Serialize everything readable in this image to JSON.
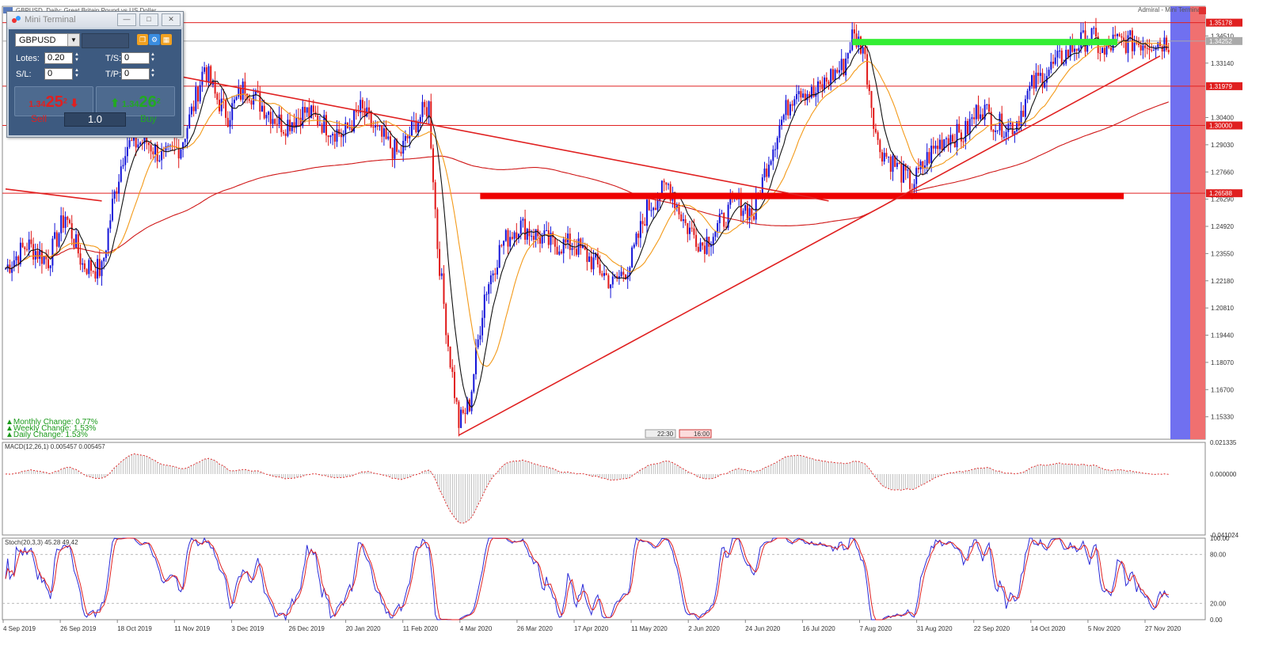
{
  "header": {
    "title": "GBPUSD, Daily:  Great Britain Pound vs US Dollar",
    "brand": "Admiral - Mini Terminal"
  },
  "mini_terminal": {
    "title": "Mini Terminal",
    "symbol": "GBPUSD",
    "lots_label": "Lotes:",
    "lots_value": "0.20",
    "ts_label": "T/S:",
    "ts_value": "0",
    "sl_label": "S/L:",
    "sl_value": "0",
    "tp_label": "T/P:",
    "tp_value": "0",
    "sell": {
      "prefix": "1.34",
      "big": "25",
      "sup": "2",
      "label": "Sell"
    },
    "buy": {
      "prefix": "1.34",
      "big": "26",
      "sup": "2",
      "label": "Buy"
    },
    "lot_multiplier": "1.0"
  },
  "changes": [
    "▲Monthly Change: 0.77%",
    "▲Weekly Change: 1.53%",
    "▲Daily Change: 1.53%"
  ],
  "time_labels": [
    "22:30",
    "16:00"
  ],
  "chart_data": [
    {
      "type": "candlestick",
      "ylim": [
        1.142,
        1.36
      ],
      "price_ticks": [
        "1.34510",
        "1.33140",
        "1.30400",
        "1.29030",
        "1.27660",
        "1.26290",
        "1.24920",
        "1.23550",
        "1.22180",
        "1.20810",
        "1.19440",
        "1.18070",
        "1.16700",
        "1.15330"
      ],
      "highlighted_levels": [
        {
          "label": "1.35178",
          "value": 1.35178,
          "color": "#e02020"
        },
        {
          "label": "1.34252",
          "value": 1.34252,
          "color": "#aaaaaa"
        },
        {
          "label": "1.31979",
          "value": 1.31979,
          "color": "#e02020"
        },
        {
          "label": "1.30000",
          "value": 1.3,
          "color": "#e02020"
        },
        {
          "label": "1.26588",
          "value": 1.26588,
          "color": "#e02020"
        }
      ],
      "date_labels": [
        "4 Sep 2019",
        "26 Sep 2019",
        "18 Oct 2019",
        "11 Nov 2019",
        "3 Dec 2019",
        "26 Dec 2019",
        "20 Jan 2020",
        "11 Feb 2020",
        "4 Mar 2020",
        "26 Mar 2020",
        "17 Apr 2020",
        "11 May 2020",
        "2 Jun 2020",
        "24 Jun 2020",
        "16 Jul 2020",
        "7 Aug 2020",
        "31 Aug 2020",
        "22 Sep 2020",
        "14 Oct 2020",
        "5 Nov 2020",
        "27 Nov 2020"
      ],
      "close_path": [
        [
          0,
          1.228
        ],
        [
          10,
          1.24
        ],
        [
          20,
          1.232
        ],
        [
          28,
          1.255
        ],
        [
          36,
          1.23
        ],
        [
          45,
          1.227
        ],
        [
          50,
          1.26
        ],
        [
          56,
          1.29
        ],
        [
          66,
          1.292
        ],
        [
          74,
          1.283
        ],
        [
          82,
          1.29
        ],
        [
          88,
          1.31
        ],
        [
          93,
          1.33
        ],
        [
          98,
          1.315
        ],
        [
          104,
          1.305
        ],
        [
          112,
          1.32
        ],
        [
          120,
          1.31
        ],
        [
          130,
          1.3
        ],
        [
          140,
          1.307
        ],
        [
          150,
          1.3
        ],
        [
          158,
          1.295
        ],
        [
          166,
          1.308
        ],
        [
          174,
          1.296
        ],
        [
          184,
          1.285
        ],
        [
          192,
          1.302
        ],
        [
          198,
          1.31
        ],
        [
          202,
          1.24
        ],
        [
          207,
          1.19
        ],
        [
          212,
          1.15
        ],
        [
          217,
          1.16
        ],
        [
          224,
          1.215
        ],
        [
          232,
          1.24
        ],
        [
          240,
          1.25
        ],
        [
          248,
          1.245
        ],
        [
          256,
          1.24
        ],
        [
          266,
          1.24
        ],
        [
          276,
          1.23
        ],
        [
          284,
          1.22
        ],
        [
          292,
          1.23
        ],
        [
          300,
          1.258
        ],
        [
          310,
          1.27
        ],
        [
          318,
          1.25
        ],
        [
          326,
          1.24
        ],
        [
          334,
          1.25
        ],
        [
          342,
          1.262
        ],
        [
          350,
          1.255
        ],
        [
          356,
          1.28
        ],
        [
          362,
          1.3
        ],
        [
          370,
          1.32
        ],
        [
          378,
          1.315
        ],
        [
          386,
          1.325
        ],
        [
          392,
          1.33
        ],
        [
          396,
          1.345
        ],
        [
          401,
          1.34
        ],
        [
          408,
          1.29
        ],
        [
          416,
          1.28
        ],
        [
          424,
          1.27
        ],
        [
          432,
          1.285
        ],
        [
          440,
          1.295
        ],
        [
          448,
          1.295
        ],
        [
          456,
          1.31
        ],
        [
          464,
          1.3
        ],
        [
          472,
          1.3
        ],
        [
          480,
          1.32
        ],
        [
          490,
          1.33
        ],
        [
          500,
          1.34
        ],
        [
          508,
          1.345
        ],
        [
          514,
          1.335
        ],
        [
          518,
          1.342
        ]
      ],
      "trendlines": [
        {
          "from": [
            0,
            1.268
          ],
          "to": [
            45,
            1.262
          ],
          "color": "#e02020"
        },
        {
          "from": [
            80,
            1.325
          ],
          "to": [
            385,
            1.262
          ],
          "color": "#e02020"
        },
        {
          "from": [
            212,
            1.144
          ],
          "to": [
            540,
            1.335
          ],
          "color": "#e02020"
        }
      ],
      "zones": [
        {
          "name": "resistance",
          "from_x": 396,
          "to_x": 520,
          "value": 1.342,
          "color": "#33ee33"
        },
        {
          "name": "support",
          "from_x": 222,
          "to_x": 523,
          "value": 1.2645,
          "color": "#ee0000"
        }
      ]
    },
    {
      "type": "bar",
      "title": "MACD(12,26,1) 0.005457 0.005457",
      "ylim": [
        -0.041024,
        0.021335
      ],
      "ticks": [
        "0.021335",
        "0.000000",
        "-0.041024"
      ]
    },
    {
      "type": "line",
      "title": "Stoch(20,3,3) 45.28 49.42",
      "ylim": [
        0,
        100
      ],
      "ticks": [
        "100.00",
        "80.00",
        "20.00",
        "0.00"
      ]
    }
  ]
}
